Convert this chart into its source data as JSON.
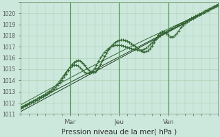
{
  "xlabel": "Pression niveau de la mer( hPa )",
  "xlim": [
    0,
    96
  ],
  "ylim": [
    1011,
    1021
  ],
  "yticks": [
    1011,
    1012,
    1013,
    1014,
    1015,
    1016,
    1017,
    1018,
    1019,
    1020
  ],
  "xtick_positions": [
    24,
    48,
    72
  ],
  "xtick_labels": [
    "Mar",
    "Jeu",
    "Ven"
  ],
  "grid_color": "#aaccaa",
  "bg_color": "#cce8dd",
  "line_color": "#336633",
  "line_color_dark": "#1a3d1a",
  "fig_bg": "#cce8dd"
}
